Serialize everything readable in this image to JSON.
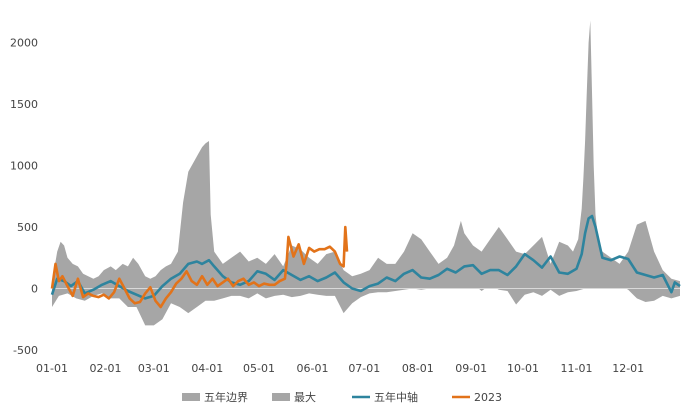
{
  "chart_data": {
    "type": "area",
    "title": "",
    "xlabel": "",
    "ylabel": "",
    "xlim": [
      1,
      365
    ],
    "ylim": [
      -500,
      2200
    ],
    "y_ticks": [
      -500,
      0,
      500,
      1000,
      1500,
      2000
    ],
    "x_ticks": [
      {
        "day": 1,
        "label": "01-01"
      },
      {
        "day": 32,
        "label": "02-01"
      },
      {
        "day": 60,
        "label": "03-01"
      },
      {
        "day": 91,
        "label": "04-01"
      },
      {
        "day": 121,
        "label": "05-01"
      },
      {
        "day": 152,
        "label": "06-01"
      },
      {
        "day": 182,
        "label": "07-01"
      },
      {
        "day": 213,
        "label": "08-01"
      },
      {
        "day": 244,
        "label": "09-01"
      },
      {
        "day": 274,
        "label": "10-01"
      },
      {
        "day": 305,
        "label": "11-01"
      },
      {
        "day": 335,
        "label": "12-01"
      }
    ],
    "legend": [
      {
        "name": "五年边界",
        "type": "area",
        "color": "#a6a6a6"
      },
      {
        "name": "最大",
        "type": "area",
        "color": "#a6a6a6"
      },
      {
        "name": "五年中轴",
        "type": "line",
        "color": "#2e849e"
      },
      {
        "name": "2023",
        "type": "line",
        "color": "#e2731a"
      }
    ],
    "legend_position": "bottom",
    "grid": false,
    "series": [
      {
        "name": "最大",
        "type": "area",
        "color": "#a6a6a6",
        "x": [
          1,
          4,
          6,
          8,
          10,
          13,
          16,
          19,
          22,
          25,
          28,
          31,
          35,
          38,
          42,
          45,
          48,
          51,
          55,
          58,
          61,
          64,
          67,
          70,
          74,
          77,
          80,
          82,
          84,
          86,
          88,
          90,
          92,
          93,
          95,
          100,
          105,
          110,
          115,
          120,
          125,
          130,
          135,
          140,
          145,
          150,
          155,
          160,
          165,
          170,
          175,
          180,
          185,
          190,
          195,
          200,
          205,
          210,
          215,
          220,
          225,
          230,
          234,
          236,
          238,
          240,
          245,
          250,
          255,
          260,
          265,
          270,
          275,
          280,
          285,
          290,
          295,
          300,
          303,
          306,
          308,
          309,
          310,
          311,
          312,
          313,
          314,
          315,
          316,
          318,
          320,
          325,
          330,
          335,
          340,
          345,
          350,
          355,
          360,
          365
        ],
        "y": [
          50,
          300,
          380,
          350,
          250,
          200,
          180,
          120,
          100,
          80,
          100,
          150,
          180,
          150,
          200,
          180,
          250,
          200,
          100,
          80,
          100,
          150,
          180,
          200,
          300,
          700,
          950,
          1000,
          1050,
          1100,
          1150,
          1180,
          1200,
          600,
          300,
          200,
          250,
          300,
          220,
          250,
          200,
          280,
          180,
          350,
          320,
          250,
          200,
          280,
          300,
          150,
          100,
          120,
          150,
          250,
          200,
          200,
          300,
          450,
          400,
          300,
          200,
          250,
          350,
          450,
          550,
          450,
          350,
          300,
          400,
          500,
          400,
          300,
          280,
          350,
          420,
          200,
          380,
          350,
          300,
          400,
          650,
          900,
          1200,
          1600,
          2000,
          2180,
          1600,
          1000,
          600,
          350,
          300,
          250,
          200,
          300,
          520,
          550,
          300,
          150,
          80,
          60
        ]
      },
      {
        "name": "五年边界",
        "type": "area",
        "color": "#a6a6a6",
        "x": [
          1,
          5,
          10,
          15,
          20,
          25,
          30,
          35,
          40,
          45,
          50,
          55,
          60,
          65,
          70,
          75,
          80,
          85,
          90,
          95,
          100,
          105,
          110,
          115,
          120,
          125,
          130,
          135,
          140,
          145,
          150,
          155,
          160,
          165,
          170,
          175,
          180,
          185,
          190,
          195,
          200,
          205,
          210,
          215,
          220,
          225,
          230,
          235,
          240,
          245,
          250,
          255,
          260,
          265,
          270,
          275,
          280,
          285,
          290,
          295,
          300,
          305,
          310,
          315,
          320,
          325,
          330,
          335,
          340,
          345,
          350,
          355,
          360,
          365
        ],
        "y": [
          -150,
          -60,
          -40,
          -80,
          -100,
          -60,
          -40,
          -80,
          -80,
          -150,
          -150,
          -300,
          -300,
          -250,
          -120,
          -150,
          -200,
          -150,
          -100,
          -100,
          -80,
          -60,
          -60,
          -80,
          -40,
          -80,
          -60,
          -50,
          -70,
          -60,
          -40,
          -50,
          -60,
          -60,
          -200,
          -120,
          -70,
          -40,
          -30,
          -30,
          -20,
          -10,
          0,
          -10,
          0,
          10,
          0,
          20,
          50,
          40,
          -20,
          30,
          -10,
          -20,
          -130,
          -50,
          -30,
          -60,
          -10,
          -60,
          -30,
          -20,
          0,
          30,
          20,
          0,
          30,
          -10,
          -80,
          -110,
          -100,
          -60,
          -80,
          -60
        ]
      },
      {
        "name": "五年中轴",
        "type": "line",
        "color": "#2e849e",
        "x": [
          1,
          4,
          8,
          12,
          16,
          20,
          25,
          30,
          35,
          40,
          45,
          50,
          55,
          60,
          65,
          70,
          75,
          80,
          85,
          88,
          92,
          95,
          100,
          105,
          110,
          115,
          120,
          125,
          130,
          135,
          140,
          145,
          150,
          155,
          160,
          165,
          170,
          175,
          180,
          185,
          190,
          195,
          200,
          205,
          210,
          215,
          220,
          225,
          230,
          235,
          240,
          245,
          250,
          255,
          260,
          265,
          270,
          275,
          280,
          285,
          290,
          295,
          300,
          305,
          308,
          310,
          312,
          314,
          316,
          320,
          325,
          330,
          335,
          340,
          345,
          350,
          355,
          360,
          362,
          365
        ],
        "y": [
          -50,
          80,
          60,
          20,
          60,
          -40,
          -10,
          30,
          60,
          20,
          -20,
          -50,
          -80,
          -60,
          20,
          80,
          120,
          200,
          220,
          200,
          230,
          180,
          100,
          50,
          30,
          60,
          140,
          120,
          70,
          150,
          110,
          70,
          100,
          60,
          90,
          130,
          50,
          0,
          -20,
          20,
          40,
          90,
          60,
          120,
          150,
          90,
          80,
          110,
          160,
          130,
          180,
          190,
          120,
          150,
          150,
          110,
          180,
          280,
          230,
          170,
          260,
          130,
          120,
          160,
          280,
          450,
          570,
          590,
          500,
          250,
          230,
          260,
          240,
          130,
          110,
          90,
          110,
          -30,
          50,
          20
        ]
      },
      {
        "name": "2023",
        "type": "line",
        "color": "#e2731a",
        "x": [
          1,
          3,
          5,
          7,
          10,
          13,
          16,
          19,
          22,
          25,
          28,
          31,
          34,
          37,
          40,
          43,
          46,
          49,
          52,
          55,
          58,
          61,
          64,
          67,
          70,
          73,
          76,
          79,
          82,
          85,
          88,
          91,
          94,
          97,
          100,
          103,
          106,
          109,
          112,
          115,
          118,
          121,
          124,
          127,
          130,
          133,
          136,
          137,
          138,
          141,
          144,
          147,
          150,
          153,
          156,
          159,
          162,
          165,
          168,
          170,
          171,
          172
        ],
        "y": [
          0,
          200,
          60,
          100,
          20,
          -60,
          80,
          -70,
          -40,
          -60,
          -70,
          -50,
          -80,
          -30,
          80,
          0,
          -80,
          -120,
          -110,
          -40,
          10,
          -100,
          -150,
          -80,
          -30,
          40,
          80,
          140,
          60,
          30,
          100,
          30,
          80,
          20,
          50,
          80,
          20,
          60,
          80,
          30,
          50,
          20,
          40,
          30,
          30,
          60,
          80,
          200,
          420,
          260,
          360,
          200,
          330,
          300,
          320,
          320,
          340,
          300,
          200,
          180,
          500,
          300
        ]
      }
    ]
  }
}
